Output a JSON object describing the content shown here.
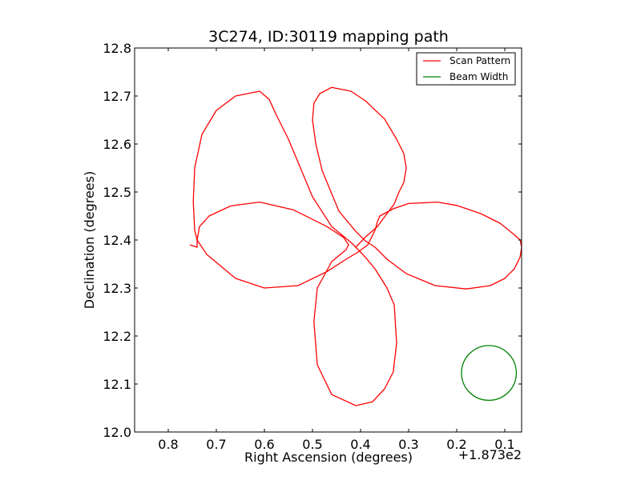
{
  "chart_data": {
    "type": "line",
    "title": "3C274, ID:30119 mapping path",
    "xlabel": "Right Ascension (degrees)",
    "ylabel": "Declination (degrees)",
    "x_offset_text": "+1.873e2",
    "x_offset_value": 187.3,
    "xlim": [
      0.87,
      0.065
    ],
    "ylim": [
      12.0,
      12.8
    ],
    "x_inverted": true,
    "grid": false,
    "legend_location": "upper right",
    "x_ticks": [
      0.8,
      0.7,
      0.6,
      0.5,
      0.4,
      0.3,
      0.2,
      0.1
    ],
    "x_tick_labels": [
      "0.8",
      "0.7",
      "0.6",
      "0.5",
      "0.4",
      "0.3",
      "0.2",
      "0.1"
    ],
    "y_ticks": [
      12.0,
      12.1,
      12.2,
      12.3,
      12.4,
      12.5,
      12.6,
      12.7,
      12.8
    ],
    "y_tick_labels": [
      "12.0",
      "12.1",
      "12.2",
      "12.3",
      "12.4",
      "12.5",
      "12.6",
      "12.7",
      "12.8"
    ],
    "series": [
      {
        "name": "Scan Pattern",
        "color": "#ff0000",
        "x": [
          0.755,
          0.74,
          0.74,
          0.735,
          0.715,
          0.67,
          0.61,
          0.54,
          0.47,
          0.435,
          0.425,
          0.43,
          0.46,
          0.49,
          0.497,
          0.49,
          0.46,
          0.41,
          0.375,
          0.35,
          0.332,
          0.325,
          0.33,
          0.345,
          0.37,
          0.39,
          0.405,
          0.42,
          0.46,
          0.5,
          0.525,
          0.55,
          0.575,
          0.59,
          0.61,
          0.66,
          0.7,
          0.73,
          0.745,
          0.748,
          0.745,
          0.74,
          0.72,
          0.66,
          0.6,
          0.53,
          0.47,
          0.43,
          0.405,
          0.385,
          0.37,
          0.365,
          0.36,
          0.332,
          0.3,
          0.24,
          0.2,
          0.15,
          0.11,
          0.085,
          0.068,
          0.065,
          0.068,
          0.08,
          0.1,
          0.13,
          0.18,
          0.245,
          0.305,
          0.345,
          0.37,
          0.39,
          0.41,
          0.445,
          0.48,
          0.493,
          0.5,
          0.497,
          0.485,
          0.46,
          0.42,
          0.39,
          0.35,
          0.325,
          0.31,
          0.305,
          0.31,
          0.32,
          0.33,
          0.345,
          0.365,
          0.39,
          0.41
        ],
        "y": [
          12.39,
          12.385,
          12.4,
          12.428,
          12.45,
          12.471,
          12.479,
          12.463,
          12.428,
          12.405,
          12.39,
          12.38,
          12.355,
          12.3,
          12.23,
          12.14,
          12.078,
          12.055,
          12.063,
          12.09,
          12.125,
          12.185,
          12.265,
          12.3,
          12.34,
          12.364,
          12.38,
          12.395,
          12.428,
          12.49,
          12.55,
          12.61,
          12.66,
          12.693,
          12.71,
          12.7,
          12.67,
          12.62,
          12.55,
          12.48,
          12.42,
          12.4,
          12.37,
          12.32,
          12.3,
          12.305,
          12.334,
          12.36,
          12.375,
          12.39,
          12.42,
          12.438,
          12.45,
          12.465,
          12.476,
          12.479,
          12.472,
          12.455,
          12.435,
          12.415,
          12.4,
          12.385,
          12.365,
          12.34,
          12.32,
          12.305,
          12.298,
          12.305,
          12.33,
          12.36,
          12.385,
          12.398,
          12.418,
          12.46,
          12.545,
          12.6,
          12.65,
          12.685,
          12.705,
          12.718,
          12.71,
          12.69,
          12.652,
          12.61,
          12.58,
          12.55,
          12.52,
          12.5,
          12.475,
          12.455,
          12.428,
          12.406,
          12.385
        ]
      },
      {
        "name": "Beam Width",
        "color": "#008000",
        "type": "circle",
        "center": [
          0.133,
          12.123
        ],
        "radius": 0.057
      }
    ]
  }
}
